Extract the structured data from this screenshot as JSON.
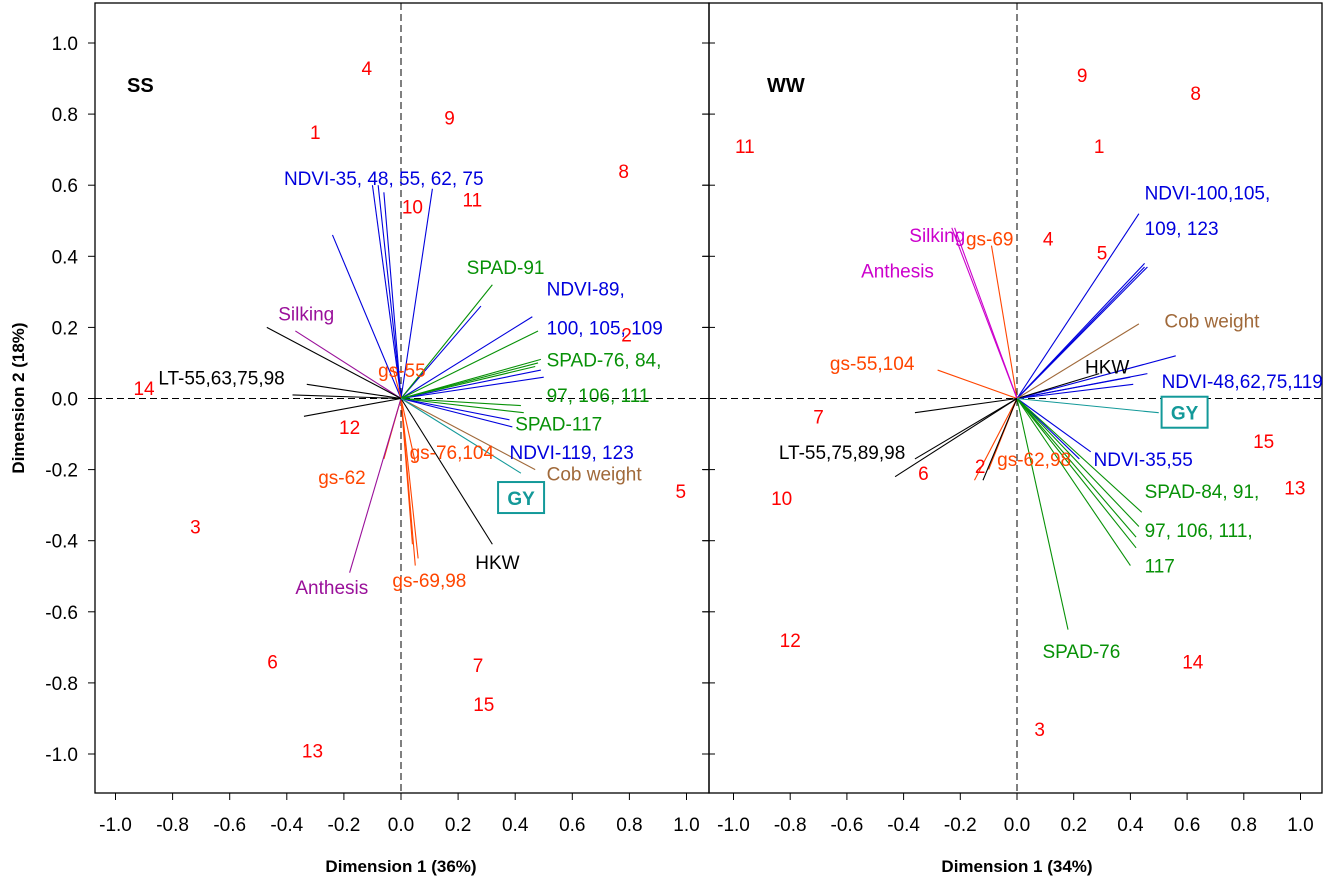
{
  "ylabel": "Dimension 2  (18%)",
  "colors": {
    "observation": "#ff0000",
    "ndvi": "#0000dd",
    "spad": "#079107",
    "gs": "#ff4500",
    "phenology": "#cc00cc",
    "phenology_ss": "#9a109a",
    "lt_hkw": "#000000",
    "cob": "#a0693a",
    "gy": "#139999"
  },
  "chart_data": [
    {
      "type": "scatter",
      "title": "SS",
      "xlabel": "Dimension 1 (36%)",
      "ylabel": "Dimension 2  (18%)",
      "xlim": [
        -1.1,
        1.05
      ],
      "ylim": [
        -1.1,
        1.1
      ],
      "xticks": [
        "-1.0",
        "-0.8",
        "-0.6",
        "-0.4",
        "-0.2",
        "0.0",
        "0.2",
        "0.4",
        "0.6",
        "0.8",
        "1.0"
      ],
      "yticks": [
        "1.0",
        "0.8",
        "0.6",
        "0.4",
        "0.2",
        "0.0",
        "-0.2",
        "-0.4",
        "-0.6",
        "-0.8",
        "-1.0"
      ],
      "observations": [
        {
          "label": "1",
          "x": -0.3,
          "y": 0.75
        },
        {
          "label": "2",
          "x": 0.79,
          "y": 0.18
        },
        {
          "label": "3",
          "x": -0.72,
          "y": -0.36
        },
        {
          "label": "4",
          "x": -0.12,
          "y": 0.93
        },
        {
          "label": "5",
          "x": 0.98,
          "y": -0.26
        },
        {
          "label": "6",
          "x": -0.45,
          "y": -0.74
        },
        {
          "label": "7",
          "x": 0.27,
          "y": -0.75
        },
        {
          "label": "8",
          "x": 0.78,
          "y": 0.64
        },
        {
          "label": "9",
          "x": 0.17,
          "y": 0.79
        },
        {
          "label": "10",
          "x": 0.04,
          "y": 0.54
        },
        {
          "label": "11",
          "x": 0.25,
          "y": 0.56
        },
        {
          "label": "12",
          "x": -0.18,
          "y": -0.08
        },
        {
          "label": "13",
          "x": -0.31,
          "y": -0.99
        },
        {
          "label": "14",
          "x": -0.9,
          "y": 0.03
        },
        {
          "label": "15",
          "x": 0.29,
          "y": -0.86
        }
      ],
      "vectors": [
        {
          "group": "ndvi",
          "x": -0.24,
          "y": 0.46
        },
        {
          "group": "ndvi",
          "x": -0.1,
          "y": 0.6
        },
        {
          "group": "ndvi",
          "x": -0.08,
          "y": 0.6
        },
        {
          "group": "ndvi",
          "x": -0.06,
          "y": 0.58
        },
        {
          "group": "ndvi",
          "x": 0.11,
          "y": 0.59
        },
        {
          "group": "ndvi",
          "x": 0.28,
          "y": 0.26
        },
        {
          "group": "ndvi",
          "x": 0.46,
          "y": 0.23
        },
        {
          "group": "ndvi",
          "x": 0.49,
          "y": 0.08
        },
        {
          "group": "ndvi",
          "x": 0.5,
          "y": 0.06
        },
        {
          "group": "ndvi",
          "x": 0.38,
          "y": -0.06
        },
        {
          "group": "ndvi",
          "x": 0.39,
          "y": -0.08
        },
        {
          "group": "spad",
          "x": 0.32,
          "y": 0.32
        },
        {
          "group": "spad",
          "x": 0.48,
          "y": 0.19
        },
        {
          "group": "spad",
          "x": 0.49,
          "y": 0.11
        },
        {
          "group": "spad",
          "x": 0.48,
          "y": 0.1
        },
        {
          "group": "spad",
          "x": 0.47,
          "y": 0.09
        },
        {
          "group": "spad",
          "x": 0.42,
          "y": -0.02
        },
        {
          "group": "spad",
          "x": 0.43,
          "y": -0.04
        },
        {
          "group": "gs",
          "x": -0.03,
          "y": 0.09
        },
        {
          "group": "gs",
          "x": 0.04,
          "y": -0.41
        },
        {
          "group": "gs",
          "x": 0.05,
          "y": -0.47
        },
        {
          "group": "gs",
          "x": 0.06,
          "y": -0.45
        },
        {
          "group": "gs",
          "x": -0.06,
          "y": -0.17
        },
        {
          "group": "gs",
          "x": 0.05,
          "y": -0.18
        },
        {
          "group": "phenology_ss",
          "x": -0.37,
          "y": 0.19
        },
        {
          "group": "phenology_ss",
          "x": -0.18,
          "y": -0.49
        },
        {
          "group": "lt_hkw",
          "x": -0.47,
          "y": 0.2
        },
        {
          "group": "lt_hkw",
          "x": -0.38,
          "y": 0.01
        },
        {
          "group": "lt_hkw",
          "x": -0.34,
          "y": -0.05
        },
        {
          "group": "lt_hkw",
          "x": -0.33,
          "y": 0.04
        },
        {
          "group": "lt_hkw",
          "x": 0.32,
          "y": -0.41
        },
        {
          "group": "cob",
          "x": 0.47,
          "y": -0.2
        },
        {
          "group": "gy",
          "x": 0.42,
          "y": -0.21
        }
      ],
      "labels": [
        {
          "text": "NDVI-35, 48, 55, 62, 75",
          "group": "ndvi",
          "x": -0.41,
          "y": 0.6
        },
        {
          "text": "NDVI-89,",
          "group": "ndvi",
          "x": 0.51,
          "y": 0.29
        },
        {
          "text": "100, 105, 109",
          "group": "ndvi",
          "x": 0.51,
          "y": 0.18
        },
        {
          "text": "NDVI-119, 123",
          "group": "ndvi",
          "x": 0.38,
          "y": -0.17
        },
        {
          "text": "SPAD-91",
          "group": "spad",
          "x": 0.23,
          "y": 0.35
        },
        {
          "text": "SPAD-76, 84,",
          "group": "spad",
          "x": 0.51,
          "y": 0.09
        },
        {
          "text": "97, 106, 111",
          "group": "spad",
          "x": 0.51,
          "y": -0.01
        },
        {
          "text": "SPAD-117",
          "group": "spad",
          "x": 0.4,
          "y": -0.09
        },
        {
          "text": "gs-55",
          "group": "gs",
          "x": -0.08,
          "y": 0.06
        },
        {
          "text": "gs-76,104",
          "group": "gs",
          "x": 0.03,
          "y": -0.17
        },
        {
          "text": "gs-62",
          "group": "gs",
          "x": -0.29,
          "y": -0.24
        },
        {
          "text": "gs-69,98",
          "group": "gs",
          "x": -0.03,
          "y": -0.53
        },
        {
          "text": "Silking",
          "group": "phenology_ss",
          "x": -0.43,
          "y": 0.22
        },
        {
          "text": "Anthesis",
          "group": "phenology_ss",
          "x": -0.37,
          "y": -0.55
        },
        {
          "text": "LT-55,63,75,98",
          "group": "lt_hkw",
          "x": -0.85,
          "y": 0.04
        },
        {
          "text": "HKW",
          "group": "lt_hkw",
          "x": 0.26,
          "y": -0.48
        },
        {
          "text": "Cob weight",
          "group": "cob",
          "x": 0.51,
          "y": -0.23
        }
      ],
      "gy_box": {
        "text": "GY",
        "x": 0.34,
        "y": -0.28
      }
    },
    {
      "type": "scatter",
      "title": "WW",
      "xlabel": "Dimension 1 (34%)",
      "xlim": [
        -1.08,
        1.1
      ],
      "ylim": [
        -1.1,
        1.1
      ],
      "xticks": [
        "-1.0",
        "-0.8",
        "-0.6",
        "-0.4",
        "-0.2",
        "0.0",
        "0.2",
        "0.4",
        "0.6",
        "0.8",
        "1.0"
      ],
      "observations": [
        {
          "label": "1",
          "x": 0.29,
          "y": 0.71
        },
        {
          "label": "2",
          "x": -0.13,
          "y": -0.19
        },
        {
          "label": "3",
          "x": 0.08,
          "y": -0.93
        },
        {
          "label": "4",
          "x": 0.11,
          "y": 0.45
        },
        {
          "label": "5",
          "x": 0.3,
          "y": 0.41
        },
        {
          "label": "6",
          "x": -0.33,
          "y": -0.21
        },
        {
          "label": "7",
          "x": -0.7,
          "y": -0.05
        },
        {
          "label": "8",
          "x": 0.63,
          "y": 0.86
        },
        {
          "label": "9",
          "x": 0.23,
          "y": 0.91
        },
        {
          "label": "10",
          "x": -0.83,
          "y": -0.28
        },
        {
          "label": "11",
          "x": -0.96,
          "y": 0.71
        },
        {
          "label": "12",
          "x": -0.8,
          "y": -0.68
        },
        {
          "label": "13",
          "x": 0.98,
          "y": -0.25
        },
        {
          "label": "14",
          "x": 0.62,
          "y": -0.74
        },
        {
          "label": "15",
          "x": 0.87,
          "y": -0.12
        }
      ],
      "vectors": [
        {
          "group": "ndvi",
          "x": 0.43,
          "y": 0.52
        },
        {
          "group": "ndvi",
          "x": 0.45,
          "y": 0.38
        },
        {
          "group": "ndvi",
          "x": 0.46,
          "y": 0.37
        },
        {
          "group": "ndvi",
          "x": 0.45,
          "y": 0.37
        },
        {
          "group": "ndvi",
          "x": 0.56,
          "y": 0.12
        },
        {
          "group": "ndvi",
          "x": 0.46,
          "y": 0.07
        },
        {
          "group": "ndvi",
          "x": 0.4,
          "y": 0.06
        },
        {
          "group": "ndvi",
          "x": 0.41,
          "y": 0.04
        },
        {
          "group": "ndvi",
          "x": 0.26,
          "y": -0.15
        },
        {
          "group": "ndvi",
          "x": 0.22,
          "y": -0.17
        },
        {
          "group": "spad",
          "x": 0.44,
          "y": -0.32
        },
        {
          "group": "spad",
          "x": 0.43,
          "y": -0.36
        },
        {
          "group": "spad",
          "x": 0.42,
          "y": -0.39
        },
        {
          "group": "spad",
          "x": 0.42,
          "y": -0.42
        },
        {
          "group": "spad",
          "x": 0.4,
          "y": -0.47
        },
        {
          "group": "spad",
          "x": 0.18,
          "y": -0.65
        },
        {
          "group": "gs",
          "x": -0.09,
          "y": 0.43
        },
        {
          "group": "gs",
          "x": -0.28,
          "y": 0.08
        },
        {
          "group": "gs",
          "x": -0.15,
          "y": -0.23
        },
        {
          "group": "gs",
          "x": -0.1,
          "y": -0.2
        },
        {
          "group": "phenology",
          "x": -0.22,
          "y": 0.48
        },
        {
          "group": "phenology",
          "x": -0.23,
          "y": 0.48
        },
        {
          "group": "lt_hkw",
          "x": -0.36,
          "y": -0.04
        },
        {
          "group": "lt_hkw",
          "x": -0.43,
          "y": -0.22
        },
        {
          "group": "lt_hkw",
          "x": -0.36,
          "y": -0.17
        },
        {
          "group": "lt_hkw",
          "x": -0.12,
          "y": -0.23
        },
        {
          "group": "lt_hkw",
          "x": 0.29,
          "y": 0.07
        },
        {
          "group": "cob",
          "x": 0.43,
          "y": 0.21
        },
        {
          "group": "gy",
          "x": 0.5,
          "y": -0.04
        }
      ],
      "labels": [
        {
          "text": "NDVI-100,105,",
          "group": "ndvi",
          "x": 0.45,
          "y": 0.56
        },
        {
          "text": "109, 123",
          "group": "ndvi",
          "x": 0.45,
          "y": 0.46
        },
        {
          "text": "NDVI-48,62,75,119",
          "group": "ndvi",
          "x": 0.51,
          "y": 0.03
        },
        {
          "text": "NDVI-35,55",
          "group": "ndvi",
          "x": 0.27,
          "y": -0.19
        },
        {
          "text": "SPAD-84, 91,",
          "group": "spad",
          "x": 0.45,
          "y": -0.28
        },
        {
          "text": "97, 106, 111,",
          "group": "spad",
          "x": 0.45,
          "y": -0.39
        },
        {
          "text": "117",
          "group": "spad",
          "x": 0.45,
          "y": -0.49
        },
        {
          "text": "SPAD-76",
          "group": "spad",
          "x": 0.09,
          "y": -0.73
        },
        {
          "text": "gs-69",
          "group": "gs",
          "x": -0.18,
          "y": 0.43
        },
        {
          "text": "gs-55,104",
          "group": "gs",
          "x": -0.66,
          "y": 0.08
        },
        {
          "text": "gs-62,98",
          "group": "gs",
          "x": -0.07,
          "y": -0.19
        },
        {
          "text": "Silking",
          "group": "phenology",
          "x": -0.38,
          "y": 0.44
        },
        {
          "text": "Anthesis",
          "group": "phenology",
          "x": -0.55,
          "y": 0.34
        },
        {
          "text": "LT-55,75,89,98",
          "group": "lt_hkw",
          "x": -0.84,
          "y": -0.17
        },
        {
          "text": "HKW",
          "group": "lt_hkw",
          "x": 0.24,
          "y": 0.07
        },
        {
          "text": "Cob weight",
          "group": "cob",
          "x": 0.52,
          "y": 0.2
        }
      ],
      "gy_box": {
        "text": "GY",
        "x": 0.51,
        "y": -0.04
      }
    }
  ]
}
